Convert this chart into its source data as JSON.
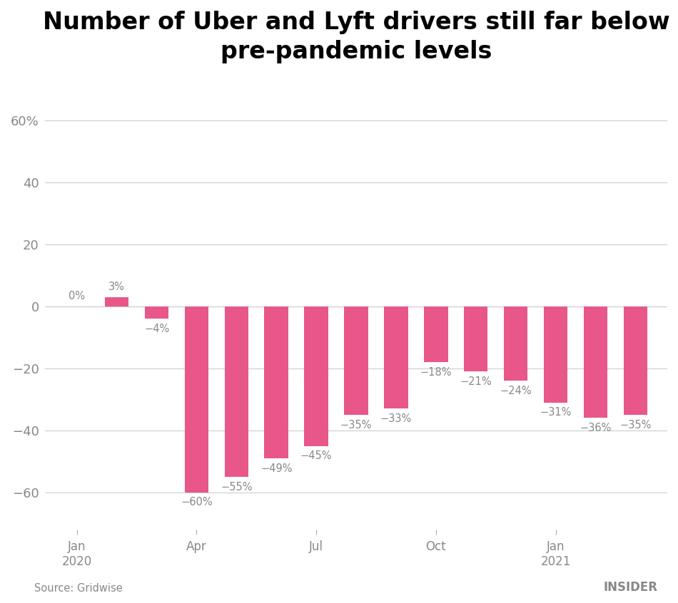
{
  "title": "Number of Uber and Lyft drivers still far below\npre-pandemic levels",
  "x_positions": [
    0,
    1,
    2,
    3,
    4,
    5,
    6,
    7,
    8,
    9,
    10,
    11,
    12,
    13,
    14
  ],
  "values": [
    0,
    3,
    -4,
    -60,
    -55,
    -49,
    -45,
    -35,
    -33,
    -18,
    -21,
    -24,
    -31,
    -36,
    -35
  ],
  "bar_color": "#e8568a",
  "label_color": "#888888",
  "bg_color": "#ffffff",
  "grid_color": "#cccccc",
  "title_fontsize": 24,
  "source_text": "Source: Gridwise",
  "brand_text": "INSIDER",
  "yticks": [
    -60,
    -40,
    -20,
    0,
    20,
    40,
    60
  ],
  "ytick_labels": [
    "−60",
    "−40",
    "−20",
    "0",
    "20",
    "40",
    "60%"
  ],
  "ylim": [
    -72,
    73
  ],
  "xtick_positions": [
    0,
    3,
    6,
    9,
    12
  ],
  "xtick_labels": [
    "Jan\n2020",
    "Apr",
    "Jul",
    "Oct",
    "Jan\n2021"
  ]
}
